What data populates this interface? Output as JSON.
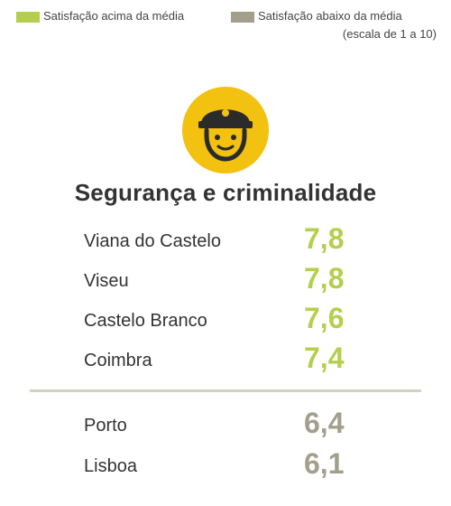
{
  "legend": {
    "above_label": "Satisfação acima da média",
    "below_label": "Satisfação abaixo da média",
    "scale_note": "(escala de 1 a 10)",
    "above_color": "#b4cf4e",
    "below_color": "#a29f8c"
  },
  "icon": {
    "name": "police-officer-icon",
    "bg_color": "#f3c10f",
    "fg_color": "#2b2b2b"
  },
  "chart_data": {
    "type": "table",
    "title": "Segurança e criminalidade",
    "above_average": [
      {
        "city": "Viana do Castelo",
        "value": "7,8"
      },
      {
        "city": "Viseu",
        "value": "7,8"
      },
      {
        "city": "Castelo Branco",
        "value": "7,6"
      },
      {
        "city": "Coimbra",
        "value": "7,4"
      }
    ],
    "below_average": [
      {
        "city": "Porto",
        "value": "6,4"
      },
      {
        "city": "Lisboa",
        "value": "6,1"
      }
    ],
    "divider_color": "#d6d2bd"
  }
}
